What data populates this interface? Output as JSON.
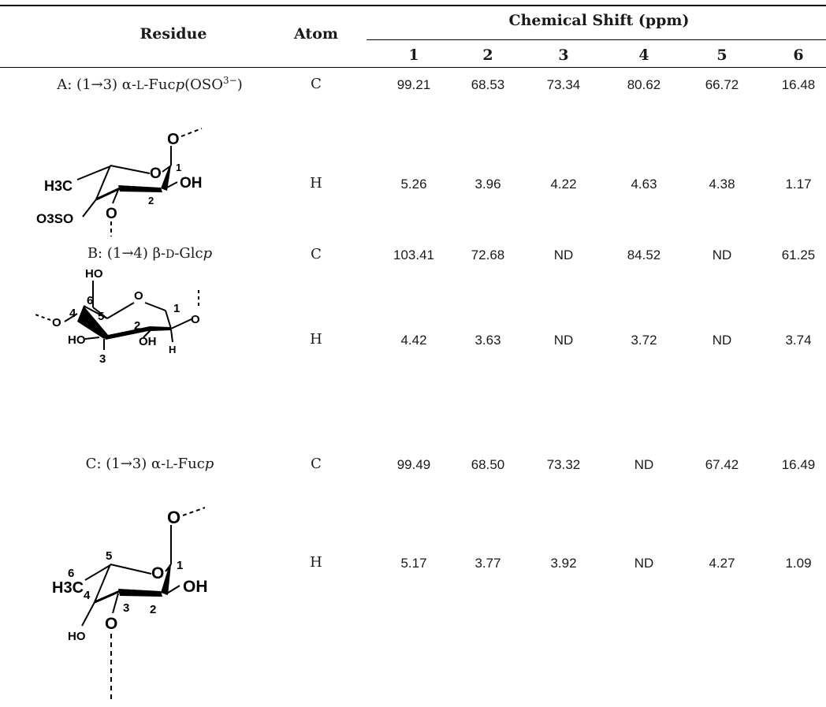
{
  "headers": {
    "residue": "Residue",
    "atom": "Atom",
    "group": "Chemical Shift (ppm)",
    "cols": [
      "1",
      "2",
      "3",
      "4",
      "5",
      "6"
    ]
  },
  "rows": [
    {
      "label_pre": "A: (1→3) α-",
      "label_sc": "L",
      "label_mid": "-Fuc",
      "label_it": "p",
      "label_post": "(OSO",
      "label_sup": "3−",
      "label_end": ")",
      "structure_labels": {
        "o_top": "O",
        "o_ring": "O",
        "c1": "1",
        "c2": "2",
        "oh": "OH",
        "ch3": "H3C",
        "oso3": "O3SO",
        "o_bottom": "O"
      },
      "c": {
        "atom": "C",
        "values": [
          "99.21",
          "68.53",
          "73.34",
          "80.62",
          "66.72",
          "16.48"
        ]
      },
      "h": {
        "atom": "H",
        "values": [
          "5.26",
          "3.96",
          "4.22",
          "4.63",
          "4.38",
          "1.17"
        ]
      }
    },
    {
      "label_pre": "B: (1→4) β-",
      "label_sc": "D",
      "label_mid": "-Glc",
      "label_it": "p",
      "label_post": "",
      "label_sup": "",
      "label_end": "",
      "structure_labels": {
        "ho_top": "HO",
        "c6": "6",
        "o_ring": "O",
        "c4": "4",
        "c5": "5",
        "c1": "1",
        "o_left": "O",
        "o_right": "O",
        "ho": "HO",
        "c3": "3",
        "c2": "2",
        "oh": "OH",
        "h": "H"
      },
      "c": {
        "atom": "C",
        "values": [
          "103.41",
          "72.68",
          "ND",
          "84.52",
          "ND",
          "61.25"
        ]
      },
      "h": {
        "atom": "H",
        "values": [
          "4.42",
          "3.63",
          "ND",
          "3.72",
          "ND",
          "3.74"
        ]
      }
    },
    {
      "label_pre": "C: (1→3) α-",
      "label_sc": "L",
      "label_mid": "-Fuc",
      "label_it": "p",
      "label_post": "",
      "label_sup": "",
      "label_end": "",
      "structure_labels": {
        "o_top": "O",
        "o_ring": "O",
        "c1": "1",
        "c2": "2",
        "c3": "3",
        "c4": "4",
        "c5": "5",
        "c6": "6",
        "oh": "OH",
        "ch3": "H3C",
        "ho": "HO",
        "o_bottom": "O"
      },
      "c": {
        "atom": "C",
        "values": [
          "99.49",
          "68.50",
          "73.32",
          "ND",
          "67.42",
          "16.49"
        ]
      },
      "h": {
        "atom": "H",
        "values": [
          "5.17",
          "3.77",
          "3.92",
          "ND",
          "4.27",
          "1.09"
        ]
      }
    }
  ]
}
